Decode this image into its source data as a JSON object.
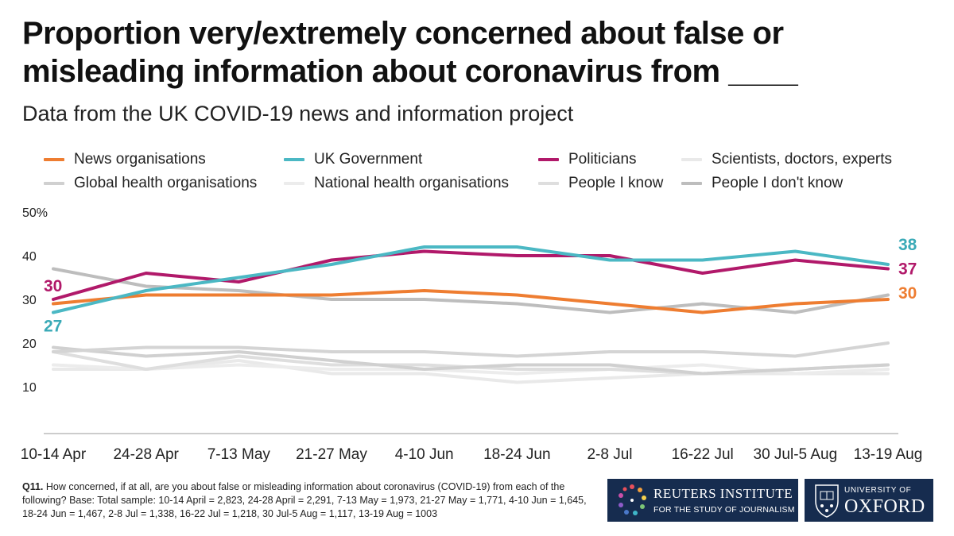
{
  "header": {
    "title": "Proportion very/extremely concerned about false or misleading information about coronavirus from ____",
    "subtitle": "Data from the UK COVID-19 news and information project"
  },
  "footnote": {
    "label": "Q11.",
    "text": "How concerned, if at all, are you about false or misleading information about coronavirus (COVID-19) from each of the following? Base: Total sample: 10-14 April = 2,823, 24-28 April = 2,291, 7-13 May = 1,973, 21-27 May = 1,771, 4-10 Jun = 1,645, 18-24 Jun = 1,467, 2-8 Jul = 1,338, 16-22 Jul = 1,218, 30 Jul-5 Aug = 1,117, 13-19 Aug = 1003"
  },
  "logos": {
    "reuters_line1": "REUTERS INSTITUTE",
    "reuters_line2": "FOR THE STUDY OF JOURNALISM",
    "oxford_line1": "UNIVERSITY OF",
    "oxford_line2": "OXFORD"
  },
  "chart_data": {
    "type": "line",
    "title": "Proportion very/extremely concerned about false or misleading information about coronavirus from ____",
    "subtitle": "Data from the UK COVID-19 news and information project",
    "categories": [
      "10-14 Apr",
      "24-28 Apr",
      "7-13 May",
      "21-27 May",
      "4-10 Jun",
      "18-24 Jun",
      "2-8 Jul",
      "16-22 Jul",
      "30 Jul-5 Aug",
      "13-19 Aug"
    ],
    "ylim": [
      0,
      50
    ],
    "yticks": [
      "10",
      "20",
      "30",
      "40",
      "50%"
    ],
    "legend_position": "top",
    "grid": false,
    "series": [
      {
        "name": "Scientists, doctors, experts",
        "color": "#e9e9e9",
        "values": [
          14,
          14,
          16,
          13,
          13,
          11,
          12,
          13,
          13,
          13
        ]
      },
      {
        "name": "National health organisations",
        "color": "#ececec",
        "values": [
          15,
          14,
          15,
          14,
          14,
          13,
          14,
          15,
          13,
          14
        ]
      },
      {
        "name": "People I know",
        "color": "#dedede",
        "values": [
          18,
          14,
          17,
          15,
          15,
          14,
          14,
          13,
          14,
          15
        ]
      },
      {
        "name": "Global health organisations",
        "color": "#d0d0d0",
        "values": [
          19,
          17,
          18,
          16,
          14,
          15,
          15,
          13,
          14,
          15
        ]
      },
      {
        "name": "People I don't know",
        "color": "#bdbdbd",
        "values": [
          37,
          33,
          32,
          30,
          30,
          29,
          27,
          29,
          27,
          31
        ]
      },
      {
        "name": "",
        "color": "#d4d4d4",
        "values": [
          18,
          19,
          19,
          18,
          18,
          17,
          18,
          18,
          17,
          20
        ]
      },
      {
        "name": "News organisations",
        "color": "#ee7d31",
        "values": [
          29,
          31,
          31,
          31,
          32,
          31,
          29,
          27,
          29,
          30
        ]
      },
      {
        "name": "Politicians",
        "color": "#b1196a",
        "values": [
          30,
          36,
          34,
          39,
          41,
          40,
          40,
          36,
          39,
          37
        ]
      },
      {
        "name": "UK Government",
        "color": "#4bb8c4",
        "values": [
          27,
          32,
          35,
          38,
          42,
          42,
          39,
          39,
          41,
          38
        ]
      }
    ],
    "annotations": {
      "start": [
        {
          "text": "30",
          "color": "#b1196a",
          "value": 30
        },
        {
          "text": "27",
          "color": "#3aaab7",
          "value": 27
        }
      ],
      "end": [
        {
          "text": "38",
          "color": "#3aaab7",
          "value": 38
        },
        {
          "text": "37",
          "color": "#b1196a",
          "value": 37
        },
        {
          "text": "30",
          "color": "#ee7d31",
          "value": 30
        }
      ]
    }
  },
  "legend": [
    {
      "label": "News organisations",
      "color": "#ee7d31"
    },
    {
      "label": "UK Government",
      "color": "#4bb8c4"
    },
    {
      "label": "Politicians",
      "color": "#b1196a"
    },
    {
      "label": "Scientists, doctors, experts",
      "color": "#e9e9e9"
    },
    {
      "label": "Global health organisations",
      "color": "#d0d0d0"
    },
    {
      "label": "National health organisations",
      "color": "#ececec"
    },
    {
      "label": "People I know",
      "color": "#dedede"
    },
    {
      "label": "People I don't know",
      "color": "#bdbdbd"
    }
  ]
}
